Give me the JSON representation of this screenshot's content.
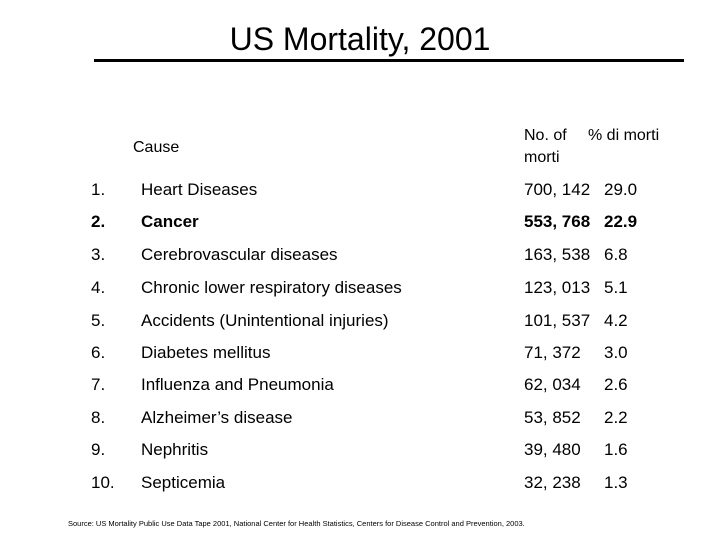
{
  "title": "US Mortality, 2001",
  "headers": {
    "cause": "Cause",
    "number_line1": "No. of",
    "number_line2": "morti",
    "percent": "% di morti"
  },
  "rows": [
    {
      "rank": "1.",
      "cause": "Heart Diseases",
      "number": "700, 142",
      "percent": "29.0"
    },
    {
      "rank": "2.",
      "cause": "Cancer",
      "number": "553, 768",
      "percent": "22.9"
    },
    {
      "rank": "3.",
      "cause": "Cerebrovascular diseases",
      "number": "163, 538",
      "percent": "6.8"
    },
    {
      "rank": "4.",
      "cause": "Chronic lower respiratory diseases",
      "number": "123, 013",
      "percent": "5.1"
    },
    {
      "rank": "5.",
      "cause": "Accidents (Unintentional injuries)",
      "number": "101, 537",
      "percent": "4.2"
    },
    {
      "rank": "6.",
      "cause": "Diabetes mellitus",
      "number": "71, 372",
      "percent": "3.0"
    },
    {
      "rank": "7.",
      "cause": "Influenza and Pneumonia",
      "number": "62, 034",
      "percent": "2.6"
    },
    {
      "rank": "8.",
      "cause": "Alzheimer’s disease",
      "number": "53, 852",
      "percent": "2.2"
    },
    {
      "rank": "9.",
      "cause": "Nephritis",
      "number": "39, 480",
      "percent": "1.6"
    },
    {
      "rank": "10.",
      "cause": "Septicemia",
      "number": "32, 238",
      "percent": "1.3"
    }
  ],
  "source": "Source: US Mortality Public Use Data Tape 2001, National Center for Health Statistics, Centers for Disease Control and Prevention, 2003."
}
